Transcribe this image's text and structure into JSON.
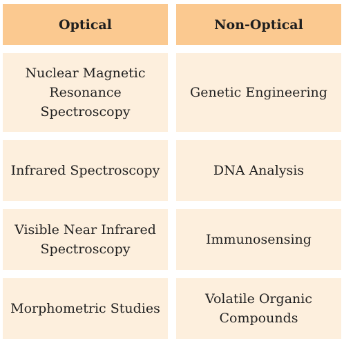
{
  "table": {
    "headers": [
      "Optical",
      "Non-Optical"
    ],
    "rows": [
      [
        "Nuclear Magnetic\nResonance\nSpectroscopy",
        "Genetic Engineering"
      ],
      [
        "Infrared Spectroscopy",
        "DNA Analysis"
      ],
      [
        "Visible Near Infrared\nSpectroscopy",
        "Immunosensing"
      ],
      [
        "Morphometric Studies",
        "Volatile Organic\nCompounds"
      ]
    ]
  },
  "colors": {
    "header_bg": "#fbc990",
    "cell_bg": "#fdefdd",
    "text": "#1f1f1f"
  }
}
